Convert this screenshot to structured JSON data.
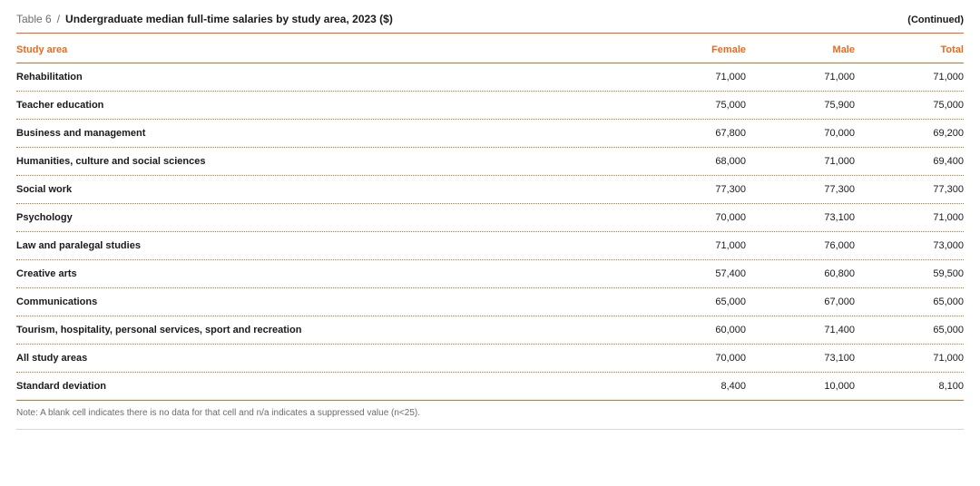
{
  "colors": {
    "accent": "#e96a1f",
    "footer_border": "#d9d9d9",
    "row_dotted": "#e96a1f"
  },
  "header": {
    "table_label": "Table 6",
    "slash": "/",
    "title": "Undergraduate median full-time salaries by study area, 2023 ($)",
    "continued": "(Continued)"
  },
  "columns": {
    "area": "Study area",
    "female": "Female",
    "male": "Male",
    "total": "Total"
  },
  "rows": [
    {
      "area": "Rehabilitation",
      "female": "71,000",
      "male": "71,000",
      "total": "71,000"
    },
    {
      "area": "Teacher education",
      "female": "75,000",
      "male": "75,900",
      "total": "75,000"
    },
    {
      "area": "Business and management",
      "female": "67,800",
      "male": "70,000",
      "total": "69,200"
    },
    {
      "area": "Humanities, culture and social sciences",
      "female": "68,000",
      "male": "71,000",
      "total": "69,400"
    },
    {
      "area": "Social work",
      "female": "77,300",
      "male": "77,300",
      "total": "77,300"
    },
    {
      "area": "Psychology",
      "female": "70,000",
      "male": "73,100",
      "total": "71,000"
    },
    {
      "area": "Law and paralegal studies",
      "female": "71,000",
      "male": "76,000",
      "total": "73,000"
    },
    {
      "area": "Creative arts",
      "female": "57,400",
      "male": "60,800",
      "total": "59,500"
    },
    {
      "area": "Communications",
      "female": "65,000",
      "male": "67,000",
      "total": "65,000"
    },
    {
      "area": "Tourism, hospitality, personal services, sport and recreation",
      "female": "60,000",
      "male": "71,400",
      "total": "65,000"
    },
    {
      "area": "All study areas",
      "female": "70,000",
      "male": "73,100",
      "total": "71,000"
    },
    {
      "area": "Standard deviation",
      "female": "8,400",
      "male": "10,000",
      "total": "8,100"
    }
  ],
  "footnote": "Note: A blank cell indicates there is no data for that cell and n/a indicates a suppressed value (n<25)."
}
